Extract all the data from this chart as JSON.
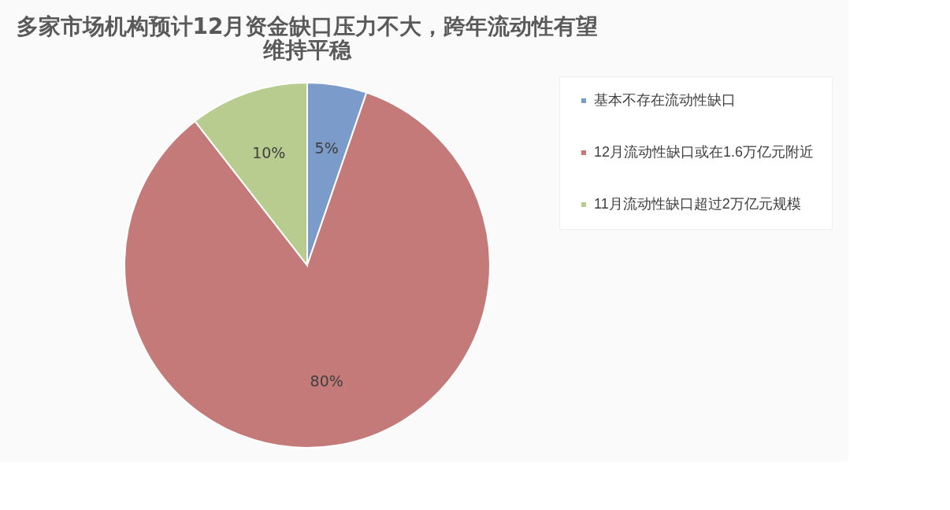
{
  "chart_data": {
    "type": "pie",
    "title": "多家市场机构预计12月资金缺口压力不大，跨年流动性有望维持平稳",
    "categories": [
      "基本不存在流动性缺口",
      "12月流动性缺口或在1.6万亿元附近",
      "11月流动性缺口超过2万亿元规模"
    ],
    "values": [
      5,
      80,
      10
    ],
    "colors": [
      "#7b9bcb",
      "#c47a79",
      "#b7cc8e"
    ],
    "value_labels": [
      "5%",
      "80%",
      "10%"
    ],
    "legend": "right"
  }
}
